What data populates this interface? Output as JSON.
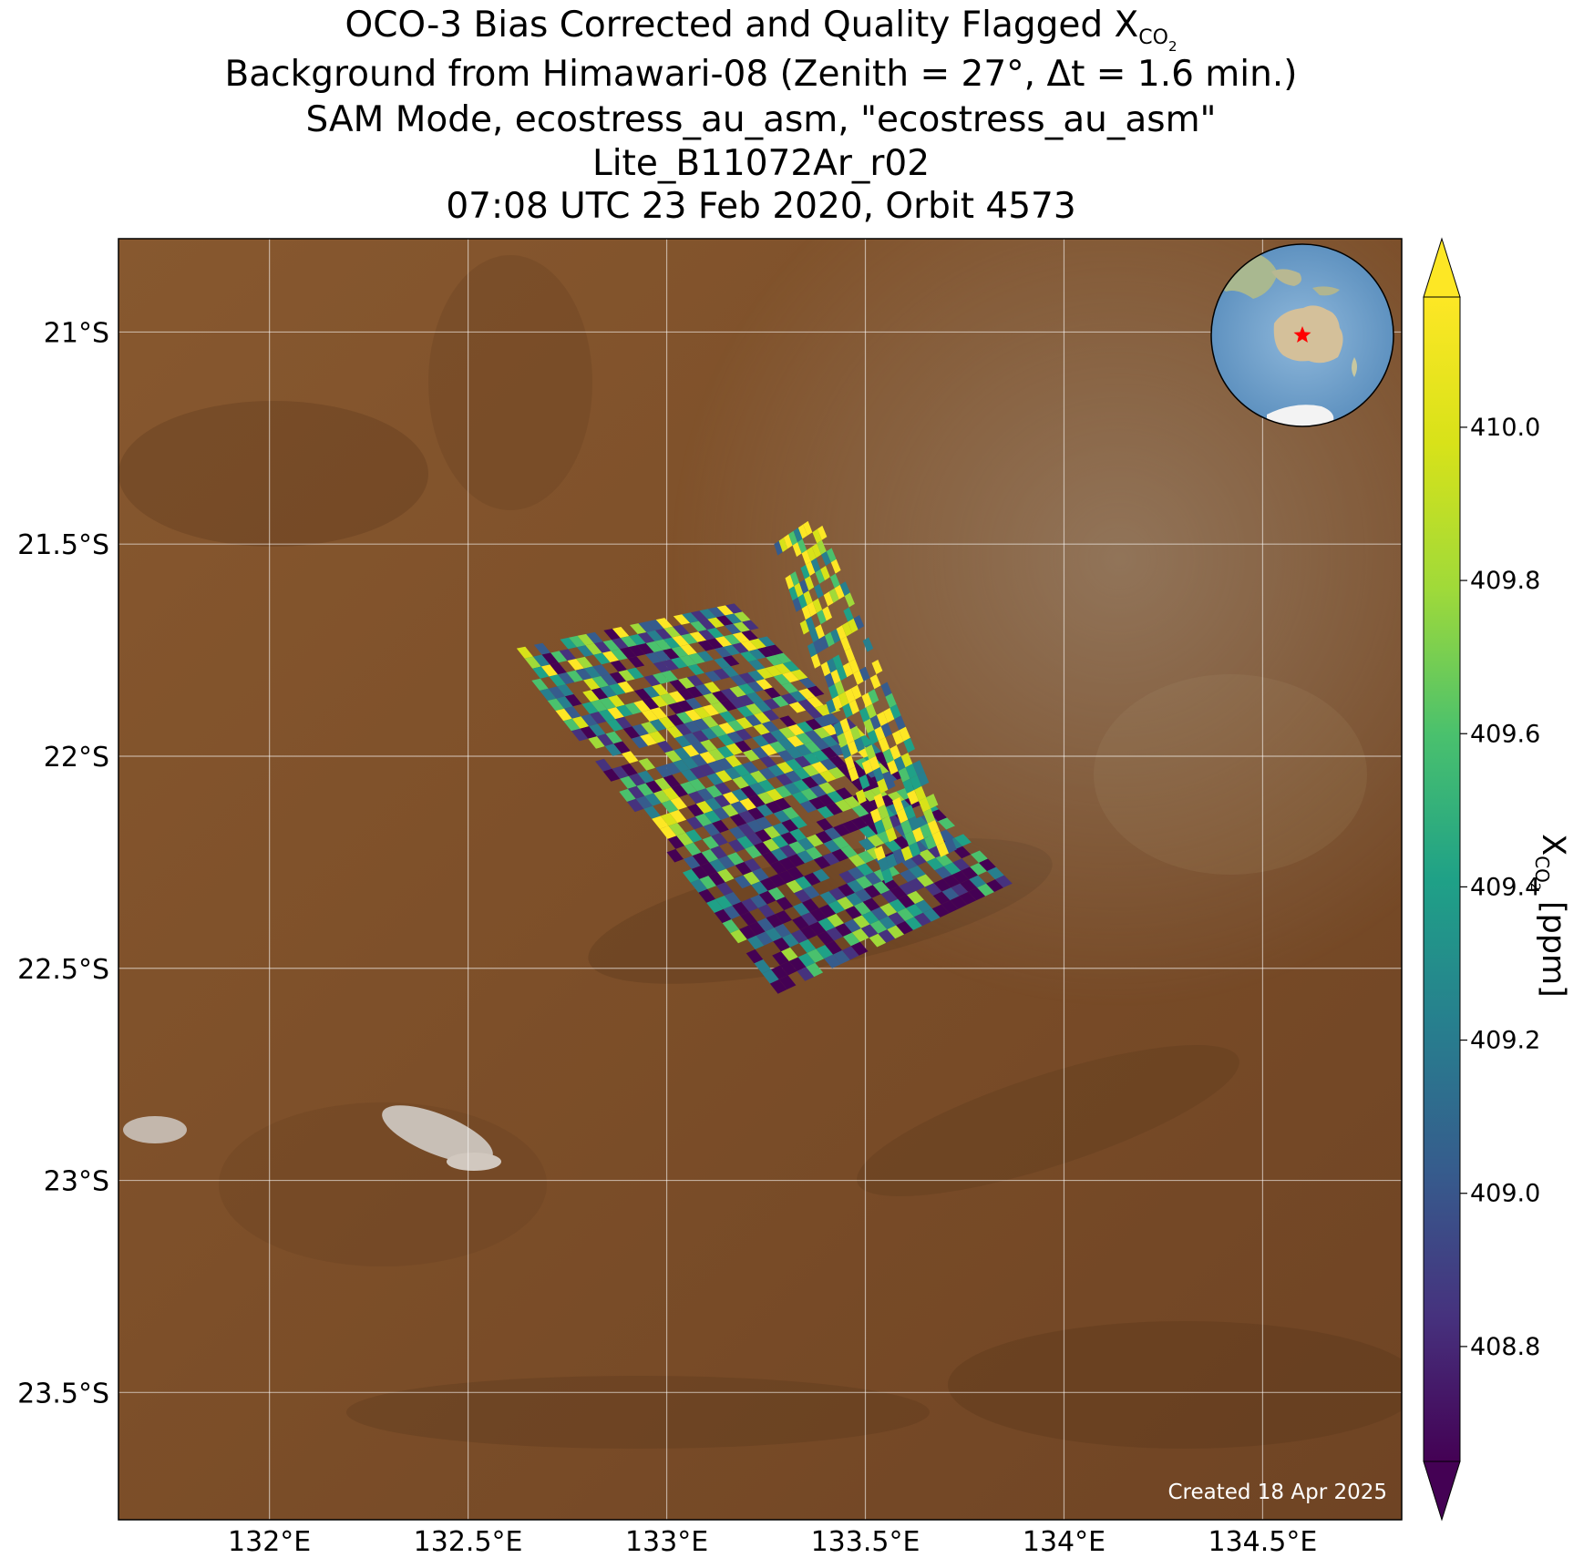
{
  "title": {
    "line1_prefix": "OCO-3 Bias Corrected and Quality Flagged X",
    "line1_sub": "CO",
    "line1_subsub": "2",
    "line2": "Background from Himawari-08 (Zenith = 27°, Δt =  1.6 min.)",
    "line3": "SAM Mode, ecostress_au_asm, \"ecostress_au_asm\"",
    "line4": "Lite_B11072Ar_r02",
    "line5": "07:08 UTC 23 Feb 2020, Orbit 4573"
  },
  "map": {
    "lon_range": [
      131.62,
      134.85
    ],
    "lat_range": [
      -23.8,
      -20.78
    ],
    "lon_ticks": [
      132.0,
      132.5,
      133.0,
      133.5,
      134.0,
      134.5
    ],
    "lon_tick_labels": [
      "132°E",
      "132.5°E",
      "133°E",
      "133.5°E",
      "134°E",
      "134.5°E"
    ],
    "lat_ticks": [
      -21.0,
      -21.5,
      -22.0,
      -22.5,
      -23.0,
      -23.5
    ],
    "lat_tick_labels": [
      "21°S",
      "21.5°S",
      "22°S",
      "22.5°S",
      "23°S",
      "23.5°S"
    ],
    "grid": true,
    "background": "satellite imagery",
    "credit": "Created 18 Apr 2025",
    "inset": "globe locator (Australia, red star)",
    "inset_marker_color": "#ff0000"
  },
  "colorbar": {
    "colormap": "viridis",
    "min": 408.65,
    "max": 410.17,
    "extend": "both",
    "ticks": [
      408.8,
      409.0,
      409.2,
      409.4,
      409.6,
      409.8,
      410.0
    ],
    "tick_labels": [
      "408.8",
      "409.0",
      "409.2",
      "409.4",
      "409.6",
      "409.8",
      "410.0"
    ],
    "label_prefix": "X",
    "label_sub": "CO",
    "label_subsub": "2",
    "label_suffix": " [ppm]"
  },
  "swaths": [
    {
      "corner_a": [
        132.6,
        -21.75
      ],
      "corner_b": [
        133.17,
        -21.64
      ],
      "corner_c": [
        133.87,
        -22.3
      ],
      "corner_d": [
        133.28,
        -22.56
      ]
    },
    {
      "corner_a": [
        133.27,
        -21.5
      ],
      "corner_b": [
        133.38,
        -21.43
      ],
      "corner_c": [
        133.73,
        -22.22
      ],
      "corner_d": [
        133.55,
        -22.3
      ]
    }
  ]
}
